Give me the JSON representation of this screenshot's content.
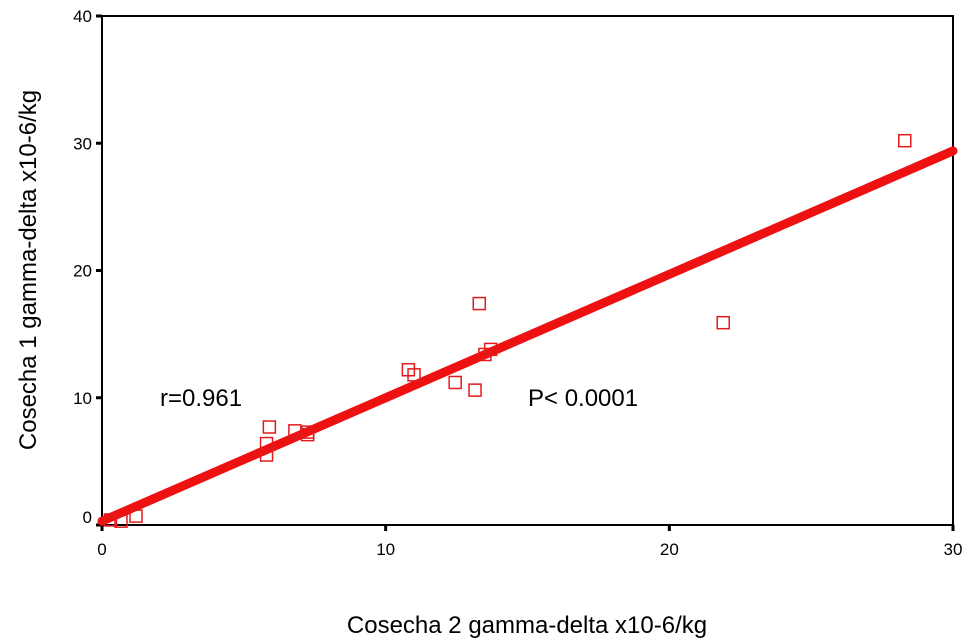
{
  "chart_data": {
    "type": "scatter",
    "x_label": "Cosecha 2 gamma-delta x10-6/kg",
    "y_label": "Cosecha 1 gamma-delta x10-6/kg",
    "series": [
      {
        "color": "#e31a1c",
        "x": [
          0.3,
          0.67,
          1.2,
          5.8,
          5.8,
          5.9,
          6.8,
          7.25,
          7.25,
          10.8,
          11.0,
          12.45,
          13.15,
          13.3,
          13.5,
          13.7,
          21.9,
          28.3
        ],
        "values": [
          0.4,
          0.3,
          0.7,
          5.5,
          6.4,
          7.7,
          7.4,
          7.1,
          7.3,
          12.2,
          11.8,
          11.2,
          10.6,
          17.4,
          13.4,
          13.8,
          15.9,
          30.2
        ]
      }
    ],
    "fit_line": {
      "color": "#ee1111",
      "x": [
        0,
        30
      ],
      "values": [
        0.3,
        29.4
      ]
    },
    "annotations": [
      "r=0.961",
      "P< 0.0001"
    ],
    "xlim": [
      0,
      30
    ],
    "ylim": [
      0,
      40
    ],
    "xticks": [
      0,
      10,
      20,
      30
    ],
    "yticks": [
      0,
      10,
      20,
      30,
      40
    ]
  }
}
